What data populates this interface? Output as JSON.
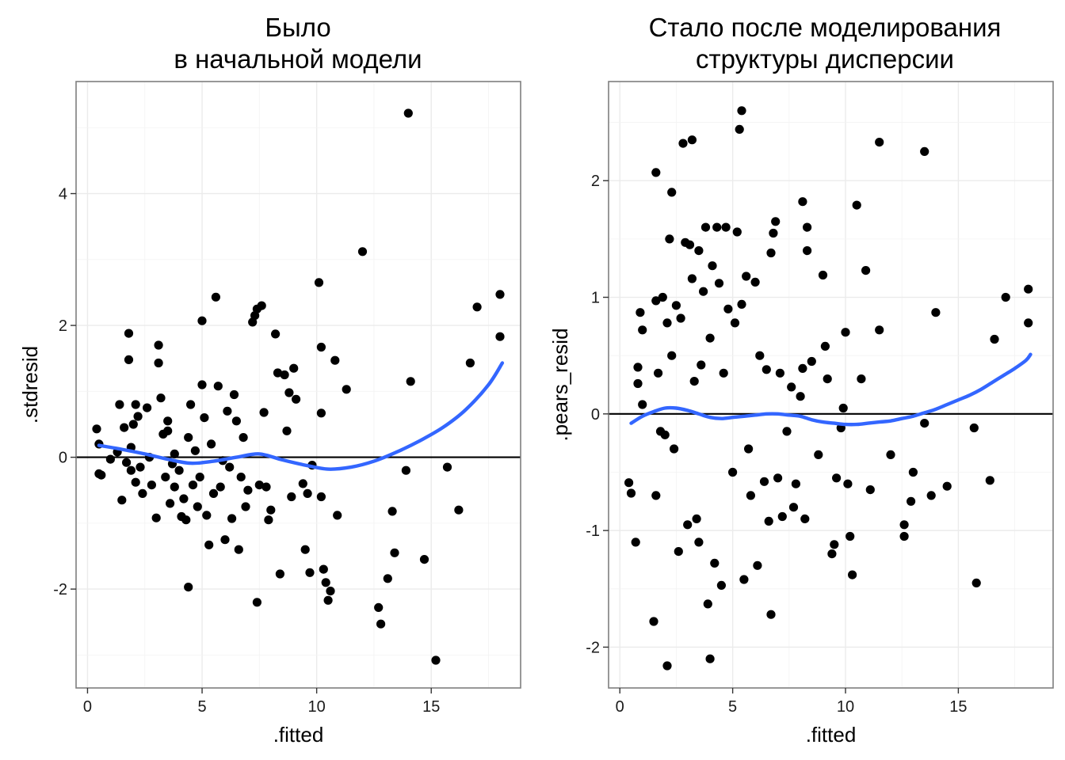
{
  "colors": {
    "points": "#000000",
    "smooth": "#3366ff",
    "hline": "#000000"
  },
  "chart_data": [
    {
      "type": "scatter",
      "title": "Было\nв начальной модели",
      "xlabel": ".fitted",
      "ylabel": ".stdresid",
      "xlim": [
        -0.5,
        18.9
      ],
      "ylim": [
        -3.5,
        5.7
      ],
      "xticks": [
        "0",
        "5",
        "10",
        "15"
      ],
      "yticks": [
        "-2",
        "0",
        "2",
        "4"
      ],
      "grid": true,
      "hline_y": 0,
      "smooth": [
        [
          0.5,
          0.18
        ],
        [
          1.5,
          0.12
        ],
        [
          2.5,
          0.05
        ],
        [
          3.5,
          -0.03
        ],
        [
          4.5,
          -0.09
        ],
        [
          5.5,
          -0.06
        ],
        [
          6.5,
          0.0
        ],
        [
          7.5,
          0.05
        ],
        [
          8.5,
          -0.04
        ],
        [
          9.5,
          -0.12
        ],
        [
          10.5,
          -0.18
        ],
        [
          11.5,
          -0.15
        ],
        [
          12.5,
          -0.06
        ],
        [
          13.5,
          0.08
        ],
        [
          14.5,
          0.25
        ],
        [
          15.5,
          0.45
        ],
        [
          16.5,
          0.72
        ],
        [
          17.5,
          1.1
        ],
        [
          18.1,
          1.43
        ]
      ],
      "points": [
        [
          0.4,
          0.43
        ],
        [
          0.5,
          0.2
        ],
        [
          0.5,
          -0.25
        ],
        [
          0.6,
          -0.27
        ],
        [
          1.0,
          -0.03
        ],
        [
          1.3,
          0.08
        ],
        [
          1.4,
          0.8
        ],
        [
          1.5,
          -0.65
        ],
        [
          1.6,
          0.45
        ],
        [
          1.7,
          -0.08
        ],
        [
          1.8,
          1.88
        ],
        [
          1.8,
          1.48
        ],
        [
          1.9,
          0.15
        ],
        [
          1.9,
          -0.2
        ],
        [
          2.0,
          0.5
        ],
        [
          2.1,
          -0.38
        ],
        [
          2.1,
          0.8
        ],
        [
          2.2,
          0.62
        ],
        [
          2.3,
          -0.15
        ],
        [
          2.4,
          -0.55
        ],
        [
          2.6,
          0.75
        ],
        [
          2.7,
          0.0
        ],
        [
          2.8,
          -0.42
        ],
        [
          3.0,
          -0.92
        ],
        [
          3.1,
          1.7
        ],
        [
          3.1,
          1.43
        ],
        [
          3.2,
          0.9
        ],
        [
          3.3,
          0.35
        ],
        [
          3.4,
          -0.3
        ],
        [
          3.5,
          0.55
        ],
        [
          3.5,
          0.4
        ],
        [
          3.6,
          -0.7
        ],
        [
          3.7,
          -0.1
        ],
        [
          3.8,
          0.05
        ],
        [
          3.8,
          -0.45
        ],
        [
          4.0,
          -0.2
        ],
        [
          4.1,
          -0.9
        ],
        [
          4.2,
          -0.63
        ],
        [
          4.3,
          -0.95
        ],
        [
          4.4,
          -1.97
        ],
        [
          4.4,
          0.3
        ],
        [
          4.5,
          0.8
        ],
        [
          4.6,
          -0.42
        ],
        [
          4.7,
          0.1
        ],
        [
          4.8,
          -0.75
        ],
        [
          4.9,
          -0.3
        ],
        [
          5.0,
          2.07
        ],
        [
          5.0,
          1.1
        ],
        [
          5.1,
          0.6
        ],
        [
          5.2,
          -0.88
        ],
        [
          5.3,
          -1.33
        ],
        [
          5.4,
          0.2
        ],
        [
          5.5,
          -0.55
        ],
        [
          5.6,
          2.43
        ],
        [
          5.7,
          1.08
        ],
        [
          5.8,
          -0.45
        ],
        [
          5.9,
          -0.05
        ],
        [
          6.0,
          -1.25
        ],
        [
          6.1,
          0.7
        ],
        [
          6.2,
          -0.15
        ],
        [
          6.3,
          -0.93
        ],
        [
          6.4,
          0.95
        ],
        [
          6.5,
          0.55
        ],
        [
          6.6,
          -1.4
        ],
        [
          6.7,
          -0.3
        ],
        [
          6.8,
          0.3
        ],
        [
          6.9,
          -0.75
        ],
        [
          7.0,
          -0.5
        ],
        [
          7.2,
          2.05
        ],
        [
          7.3,
          2.15
        ],
        [
          7.4,
          2.25
        ],
        [
          7.4,
          -2.2
        ],
        [
          7.5,
          -0.42
        ],
        [
          7.6,
          2.3
        ],
        [
          7.7,
          0.68
        ],
        [
          7.8,
          -0.45
        ],
        [
          7.9,
          -0.95
        ],
        [
          8.0,
          -0.8
        ],
        [
          8.2,
          1.87
        ],
        [
          8.3,
          1.28
        ],
        [
          8.4,
          -1.77
        ],
        [
          8.6,
          1.25
        ],
        [
          8.7,
          0.4
        ],
        [
          8.8,
          0.98
        ],
        [
          8.9,
          -0.6
        ],
        [
          9.0,
          1.35
        ],
        [
          9.1,
          0.88
        ],
        [
          9.4,
          -0.4
        ],
        [
          9.5,
          -1.4
        ],
        [
          9.6,
          -0.55
        ],
        [
          9.7,
          -1.75
        ],
        [
          9.8,
          -0.12
        ],
        [
          10.1,
          2.65
        ],
        [
          10.2,
          1.67
        ],
        [
          10.2,
          0.67
        ],
        [
          10.2,
          -0.6
        ],
        [
          10.3,
          -1.7
        ],
        [
          10.4,
          -1.9
        ],
        [
          10.5,
          -2.17
        ],
        [
          10.6,
          -2.03
        ],
        [
          10.8,
          1.47
        ],
        [
          10.9,
          -0.88
        ],
        [
          11.3,
          1.03
        ],
        [
          12.0,
          3.12
        ],
        [
          12.7,
          -2.28
        ],
        [
          12.8,
          -2.53
        ],
        [
          13.1,
          -1.84
        ],
        [
          13.3,
          -0.82
        ],
        [
          13.4,
          -1.45
        ],
        [
          13.9,
          -0.2
        ],
        [
          14.0,
          5.22
        ],
        [
          14.1,
          1.15
        ],
        [
          14.7,
          -1.55
        ],
        [
          15.2,
          -3.08
        ],
        [
          15.7,
          -0.15
        ],
        [
          16.2,
          -0.8
        ],
        [
          16.7,
          1.43
        ],
        [
          17.0,
          2.28
        ],
        [
          18.0,
          2.47
        ],
        [
          18.0,
          1.83
        ]
      ]
    },
    {
      "type": "scatter",
      "title": "Стало после моделирования\nструктуры дисперсии",
      "xlabel": ".fitted",
      "ylabel": ".pears_resid",
      "xlim": [
        -0.5,
        19.2
      ],
      "ylim": [
        -2.35,
        2.85
      ],
      "xticks": [
        "0",
        "5",
        "10",
        "15"
      ],
      "yticks": [
        "-2",
        "-1",
        "0",
        "1",
        "2"
      ],
      "grid": true,
      "hline_y": 0,
      "smooth": [
        [
          0.5,
          -0.08
        ],
        [
          1.0,
          -0.02
        ],
        [
          1.5,
          0.02
        ],
        [
          2.0,
          0.05
        ],
        [
          2.5,
          0.05
        ],
        [
          3.0,
          0.03
        ],
        [
          3.5,
          0.0
        ],
        [
          4.0,
          -0.03
        ],
        [
          4.5,
          -0.04
        ],
        [
          5.0,
          -0.03
        ],
        [
          5.5,
          -0.02
        ],
        [
          6.0,
          -0.01
        ],
        [
          6.5,
          0.0
        ],
        [
          7.0,
          0.0
        ],
        [
          7.5,
          -0.01
        ],
        [
          8.0,
          -0.02
        ],
        [
          8.5,
          -0.05
        ],
        [
          9.0,
          -0.07
        ],
        [
          9.5,
          -0.08
        ],
        [
          10.0,
          -0.09
        ],
        [
          10.5,
          -0.09
        ],
        [
          11.0,
          -0.08
        ],
        [
          11.5,
          -0.07
        ],
        [
          12.0,
          -0.06
        ],
        [
          12.5,
          -0.04
        ],
        [
          13.0,
          -0.02
        ],
        [
          13.5,
          0.01
        ],
        [
          14.0,
          0.04
        ],
        [
          14.5,
          0.08
        ],
        [
          15.0,
          0.12
        ],
        [
          15.5,
          0.16
        ],
        [
          16.0,
          0.21
        ],
        [
          16.5,
          0.27
        ],
        [
          17.0,
          0.33
        ],
        [
          17.5,
          0.39
        ],
        [
          18.0,
          0.46
        ],
        [
          18.2,
          0.51
        ]
      ],
      "points": [
        [
          0.4,
          -0.59
        ],
        [
          0.5,
          -0.68
        ],
        [
          0.7,
          -1.1
        ],
        [
          0.8,
          0.26
        ],
        [
          0.8,
          0.4
        ],
        [
          0.9,
          0.87
        ],
        [
          1.0,
          0.72
        ],
        [
          1.0,
          0.08
        ],
        [
          1.5,
          -1.78
        ],
        [
          1.6,
          2.07
        ],
        [
          1.6,
          -0.7
        ],
        [
          1.6,
          0.97
        ],
        [
          1.7,
          0.35
        ],
        [
          1.8,
          -0.15
        ],
        [
          1.9,
          1.0
        ],
        [
          2.0,
          -0.18
        ],
        [
          2.1,
          -2.16
        ],
        [
          2.1,
          0.78
        ],
        [
          2.2,
          1.5
        ],
        [
          2.3,
          1.9
        ],
        [
          2.3,
          0.5
        ],
        [
          2.4,
          -0.3
        ],
        [
          2.5,
          0.93
        ],
        [
          2.6,
          -1.18
        ],
        [
          2.7,
          0.82
        ],
        [
          2.8,
          2.32
        ],
        [
          2.9,
          1.47
        ],
        [
          3.0,
          -0.95
        ],
        [
          3.1,
          1.45
        ],
        [
          3.2,
          2.35
        ],
        [
          3.2,
          1.16
        ],
        [
          3.3,
          0.28
        ],
        [
          3.4,
          -0.9
        ],
        [
          3.5,
          1.4
        ],
        [
          3.5,
          -1.1
        ],
        [
          3.6,
          0.42
        ],
        [
          3.7,
          1.05
        ],
        [
          3.8,
          1.6
        ],
        [
          3.9,
          -1.63
        ],
        [
          4.0,
          -2.1
        ],
        [
          4.0,
          0.65
        ],
        [
          4.1,
          1.27
        ],
        [
          4.2,
          -1.28
        ],
        [
          4.3,
          1.6
        ],
        [
          4.4,
          1.12
        ],
        [
          4.5,
          -1.47
        ],
        [
          4.6,
          0.35
        ],
        [
          4.7,
          1.6
        ],
        [
          4.8,
          0.9
        ],
        [
          5.0,
          -0.5
        ],
        [
          5.1,
          0.78
        ],
        [
          5.2,
          1.56
        ],
        [
          5.3,
          2.44
        ],
        [
          5.4,
          0.94
        ],
        [
          5.4,
          2.6
        ],
        [
          5.5,
          -1.42
        ],
        [
          5.6,
          1.18
        ],
        [
          5.7,
          -0.3
        ],
        [
          5.8,
          -0.7
        ],
        [
          6.0,
          1.13
        ],
        [
          6.1,
          -1.3
        ],
        [
          6.2,
          0.5
        ],
        [
          6.4,
          -0.58
        ],
        [
          6.5,
          0.38
        ],
        [
          6.6,
          -0.92
        ],
        [
          6.7,
          -1.72
        ],
        [
          6.7,
          1.38
        ],
        [
          6.8,
          1.55
        ],
        [
          6.9,
          1.65
        ],
        [
          7.0,
          -0.55
        ],
        [
          7.1,
          0.35
        ],
        [
          7.2,
          -0.88
        ],
        [
          7.4,
          -0.15
        ],
        [
          7.6,
          0.23
        ],
        [
          7.7,
          -0.8
        ],
        [
          7.8,
          -0.6
        ],
        [
          8.0,
          0.15
        ],
        [
          8.1,
          0.39
        ],
        [
          8.1,
          1.82
        ],
        [
          8.2,
          -0.9
        ],
        [
          8.3,
          1.6
        ],
        [
          8.3,
          1.4
        ],
        [
          8.5,
          0.45
        ],
        [
          8.8,
          -0.35
        ],
        [
          9.0,
          1.19
        ],
        [
          9.1,
          0.58
        ],
        [
          9.2,
          0.3
        ],
        [
          9.4,
          -1.2
        ],
        [
          9.5,
          -1.12
        ],
        [
          9.6,
          -0.55
        ],
        [
          9.8,
          -0.12
        ],
        [
          9.9,
          0.05
        ],
        [
          10.0,
          0.7
        ],
        [
          10.1,
          -0.6
        ],
        [
          10.2,
          -1.05
        ],
        [
          10.3,
          -1.38
        ],
        [
          10.5,
          1.79
        ],
        [
          10.7,
          0.3
        ],
        [
          10.9,
          1.23
        ],
        [
          11.1,
          -0.65
        ],
        [
          11.5,
          2.33
        ],
        [
          11.5,
          0.72
        ],
        [
          12.0,
          -0.35
        ],
        [
          12.6,
          -0.95
        ],
        [
          12.6,
          -1.05
        ],
        [
          12.9,
          -0.75
        ],
        [
          13.0,
          -0.5
        ],
        [
          13.5,
          2.25
        ],
        [
          13.5,
          -0.08
        ],
        [
          13.8,
          -0.7
        ],
        [
          14.0,
          0.87
        ],
        [
          14.5,
          -0.62
        ],
        [
          15.7,
          -0.12
        ],
        [
          15.8,
          -1.45
        ],
        [
          16.4,
          -0.57
        ],
        [
          16.6,
          0.64
        ],
        [
          17.1,
          1.0
        ],
        [
          18.1,
          1.07
        ],
        [
          18.1,
          0.78
        ]
      ]
    }
  ]
}
